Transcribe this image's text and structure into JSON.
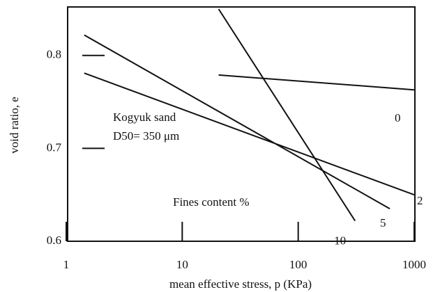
{
  "chart_data": {
    "type": "line",
    "x_label": "mean effective stress, p (KPa)",
    "y_label": "void ratio, e",
    "annotations": [
      "Kogyuk sand",
      "D50= 350 μm",
      "Fines content %"
    ],
    "x_scale": "log",
    "xlim": [
      1,
      1000
    ],
    "xticks": [
      1,
      10,
      100,
      1000
    ],
    "ylim": [
      0.6,
      0.85
    ],
    "yticks": [
      0.6,
      0.7,
      0.8
    ],
    "series": [
      {
        "name": "0",
        "color": "#111111",
        "x": [
          20.6,
          1000
        ],
        "values": [
          0.779,
          0.763
        ]
      },
      {
        "name": "2",
        "color": "#111111",
        "x": [
          1.43,
          1000
        ],
        "values": [
          0.781,
          0.65
        ]
      },
      {
        "name": "5",
        "color": "#111111",
        "x": [
          1.43,
          616
        ],
        "values": [
          0.822,
          0.635
        ]
      },
      {
        "name": "10",
        "color": "#111111",
        "x": [
          20.6,
          309
        ],
        "values": [
          0.85,
          0.622
        ]
      }
    ]
  }
}
